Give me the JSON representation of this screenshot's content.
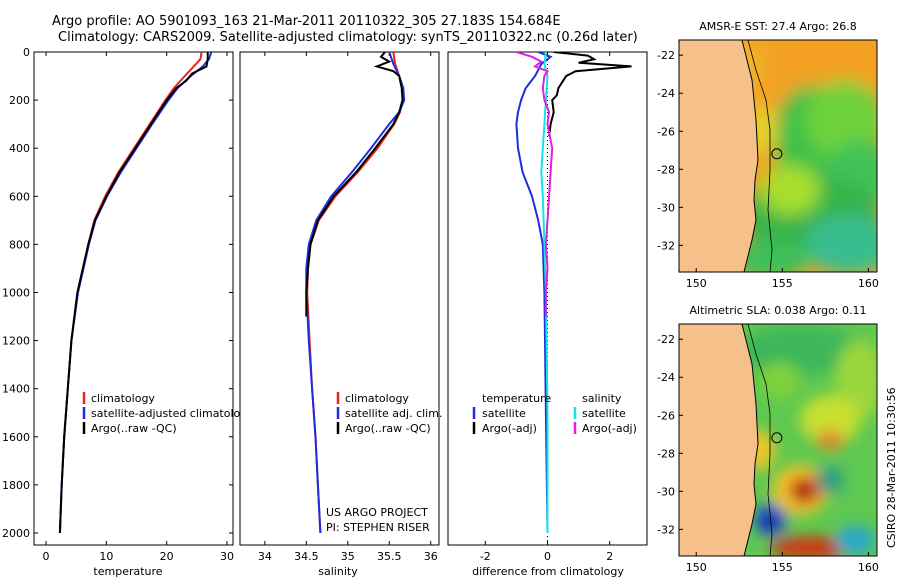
{
  "header": {
    "line1": "Argo profile: AO 5901093_163 21-Mar-2011 20110322_305 27.183S 154.684E",
    "line2": "Climatology: CARS2009. Satellite-adjusted climatology: synTS_20110322.nc (0.26d later)"
  },
  "credit": {
    "project": "US ARGO PROJECT",
    "pi": "PI: STEPHEN RISER",
    "stamp": "CSIRO 28-Mar-2011 10:30:56"
  },
  "colors": {
    "climatology": "#e8211b",
    "satellite": "#1b2ee0",
    "argo": "#000000",
    "cyan": "#13e3e3",
    "magenta": "#e21fe0",
    "land": "#f5c08a"
  },
  "chart_data": [
    {
      "type": "line",
      "id": "temperature",
      "xlabel": "temperature",
      "ylabel": "",
      "xlim": [
        -2,
        31
      ],
      "ylim": [
        2050,
        0
      ],
      "xticks": [
        0,
        10,
        20,
        30
      ],
      "yticks": [
        0,
        200,
        400,
        600,
        800,
        1000,
        1200,
        1400,
        1600,
        1800,
        2000
      ],
      "legend": [
        "climatology",
        "satellite-adjusted climatolog",
        "Argo(..raw -QC)"
      ],
      "series": [
        {
          "name": "climatology",
          "color_key": "climatology",
          "depth": [
            0,
            30,
            60,
            100,
            150,
            200,
            300,
            400,
            500,
            600,
            700,
            800,
            1000,
            1200,
            1400,
            1600,
            1800,
            2000
          ],
          "values": [
            25.8,
            25.6,
            24.5,
            23.0,
            21.2,
            19.8,
            17.2,
            14.6,
            12.0,
            9.8,
            8.0,
            7.0,
            5.2,
            4.2,
            3.6,
            3.0,
            2.6,
            2.3
          ]
        },
        {
          "name": "satellite",
          "color_key": "satellite",
          "depth": [
            0,
            30,
            60,
            100,
            150,
            200,
            300,
            400,
            500,
            600,
            700,
            800,
            1000,
            1200,
            1400,
            1600,
            1800,
            2000
          ],
          "values": [
            27.4,
            27.0,
            26.0,
            24.0,
            21.8,
            20.3,
            17.6,
            15.0,
            12.4,
            10.1,
            8.2,
            7.1,
            5.3,
            4.2,
            3.6,
            3.0,
            2.6,
            2.3
          ]
        },
        {
          "name": "argo",
          "color_key": "argo",
          "depth": [
            0,
            30,
            60,
            90,
            120,
            150,
            200,
            300,
            400,
            500,
            600,
            700,
            800,
            1000,
            1200,
            1400,
            1600,
            1800,
            2000
          ],
          "values": [
            26.8,
            26.8,
            26.6,
            24.2,
            23.2,
            21.6,
            20.0,
            17.4,
            14.8,
            12.2,
            10.0,
            8.1,
            7.0,
            5.2,
            4.2,
            3.6,
            3.0,
            2.6,
            2.3
          ]
        }
      ]
    },
    {
      "type": "line",
      "id": "salinity",
      "xlabel": "salinity",
      "ylabel": "",
      "xlim": [
        33.7,
        36.1
      ],
      "ylim": [
        2050,
        0
      ],
      "xticks": [
        34,
        34.5,
        35,
        35.5,
        36
      ],
      "yticks": [],
      "legend": [
        "climatology",
        "satellite adj. clim.",
        "Argo(..raw -QC)"
      ],
      "series": [
        {
          "name": "climatology",
          "color_key": "climatology",
          "depth": [
            0,
            50,
            100,
            150,
            200,
            250,
            300,
            400,
            500,
            600,
            700,
            800,
            900,
            1000,
            1200,
            1400,
            1600,
            1800,
            2000
          ],
          "values": [
            35.55,
            35.57,
            35.62,
            35.66,
            35.66,
            35.63,
            35.56,
            35.36,
            35.12,
            34.85,
            34.65,
            34.55,
            34.52,
            34.51,
            34.54,
            34.57,
            34.61,
            34.64,
            34.67
          ]
        },
        {
          "name": "satellite",
          "color_key": "satellite",
          "depth": [
            0,
            50,
            100,
            150,
            200,
            250,
            300,
            400,
            500,
            600,
            700,
            800,
            900,
            1000,
            1200,
            1400,
            1600,
            1800,
            2000
          ],
          "values": [
            35.5,
            35.55,
            35.62,
            35.67,
            35.68,
            35.62,
            35.5,
            35.28,
            35.05,
            34.8,
            34.62,
            34.53,
            34.5,
            34.5,
            34.53,
            34.57,
            34.61,
            34.64,
            34.67
          ]
        },
        {
          "name": "argo",
          "color_key": "argo",
          "depth": [
            0,
            20,
            40,
            60,
            80,
            100,
            150,
            200,
            250,
            300,
            400,
            500,
            600,
            700,
            800,
            900,
            1000,
            1100
          ],
          "values": [
            35.45,
            35.4,
            35.5,
            35.35,
            35.55,
            35.62,
            35.65,
            35.66,
            35.62,
            35.55,
            35.33,
            35.1,
            34.83,
            34.64,
            34.55,
            34.52,
            34.5,
            34.5
          ]
        }
      ]
    },
    {
      "type": "line",
      "id": "difference",
      "xlabel": "difference from climatology",
      "ylabel": "",
      "xlim": [
        -3.2,
        3.2
      ],
      "ylim": [
        2050,
        0
      ],
      "xticks": [
        -2,
        0,
        2
      ],
      "yticks": [],
      "legend_left_head": "temperature",
      "legend_right_head": "salinity",
      "legend_left": [
        "satellite",
        "Argo(-adj)"
      ],
      "legend_right": [
        "satellite",
        "Argo(-adj)"
      ],
      "series": [
        {
          "name": "temperature satellite",
          "color_key": "satellite",
          "depth": [
            0,
            20,
            50,
            100,
            150,
            200,
            250,
            300,
            400,
            500,
            600,
            700,
            800,
            1000,
            1500,
            2000
          ],
          "values": [
            -0.3,
            0.1,
            -0.2,
            -0.4,
            -0.7,
            -0.85,
            -0.95,
            -1.0,
            -0.95,
            -0.8,
            -0.5,
            -0.3,
            -0.15,
            -0.1,
            -0.05,
            0.0
          ]
        },
        {
          "name": "temperature argo",
          "color_key": "argo",
          "depth": [
            0,
            15,
            30,
            45,
            60,
            80,
            100,
            120,
            150,
            180,
            200,
            250,
            300,
            350
          ],
          "values": [
            0.2,
            1.3,
            1.5,
            1.0,
            2.7,
            0.9,
            0.6,
            0.5,
            0.35,
            0.3,
            0.15,
            0.2,
            0.1,
            0.05
          ]
        },
        {
          "name": "salinity satellite",
          "color_key": "cyan",
          "depth": [
            0,
            50,
            100,
            200,
            300,
            400,
            500,
            600,
            800,
            1000,
            1500,
            2000
          ],
          "values": [
            -0.05,
            -0.1,
            0.0,
            -0.05,
            -0.1,
            -0.15,
            -0.2,
            -0.15,
            -0.1,
            -0.05,
            0.0,
            0.0
          ]
        },
        {
          "name": "salinity argo",
          "color_key": "magenta",
          "depth": [
            0,
            20,
            40,
            60,
            80,
            100,
            150,
            200,
            250,
            300,
            400,
            500,
            600,
            700,
            800,
            900,
            1000,
            1100
          ],
          "values": [
            -1.0,
            -0.5,
            -0.2,
            -0.4,
            0.0,
            -0.1,
            -0.15,
            -0.1,
            0.05,
            0.0,
            0.15,
            0.1,
            0.05,
            0.0,
            -0.05,
            0.0,
            -0.05,
            -0.05
          ]
        }
      ]
    },
    {
      "type": "heatmap",
      "id": "sst-map",
      "title": "AMSR-E SST: 27.4 Argo: 26.8",
      "xticks": [
        150,
        155,
        160
      ],
      "yticks": [
        -22,
        -24,
        -26,
        -28,
        -30,
        -32
      ],
      "xlim": [
        149,
        160.5
      ],
      "ylim": [
        -33.4,
        -21.2
      ],
      "float_position": {
        "lon": 154.684,
        "lat": -27.183
      }
    },
    {
      "type": "heatmap",
      "id": "sla-map",
      "title": "Altimetric SLA: 0.038 Argo: 0.11",
      "xticks": [
        150,
        155,
        160
      ],
      "yticks": [
        -22,
        -24,
        -26,
        -28,
        -30,
        -32
      ],
      "xlim": [
        149,
        160.5
      ],
      "ylim": [
        -33.4,
        -21.2
      ],
      "float_position": {
        "lon": 154.684,
        "lat": -27.183
      }
    }
  ]
}
